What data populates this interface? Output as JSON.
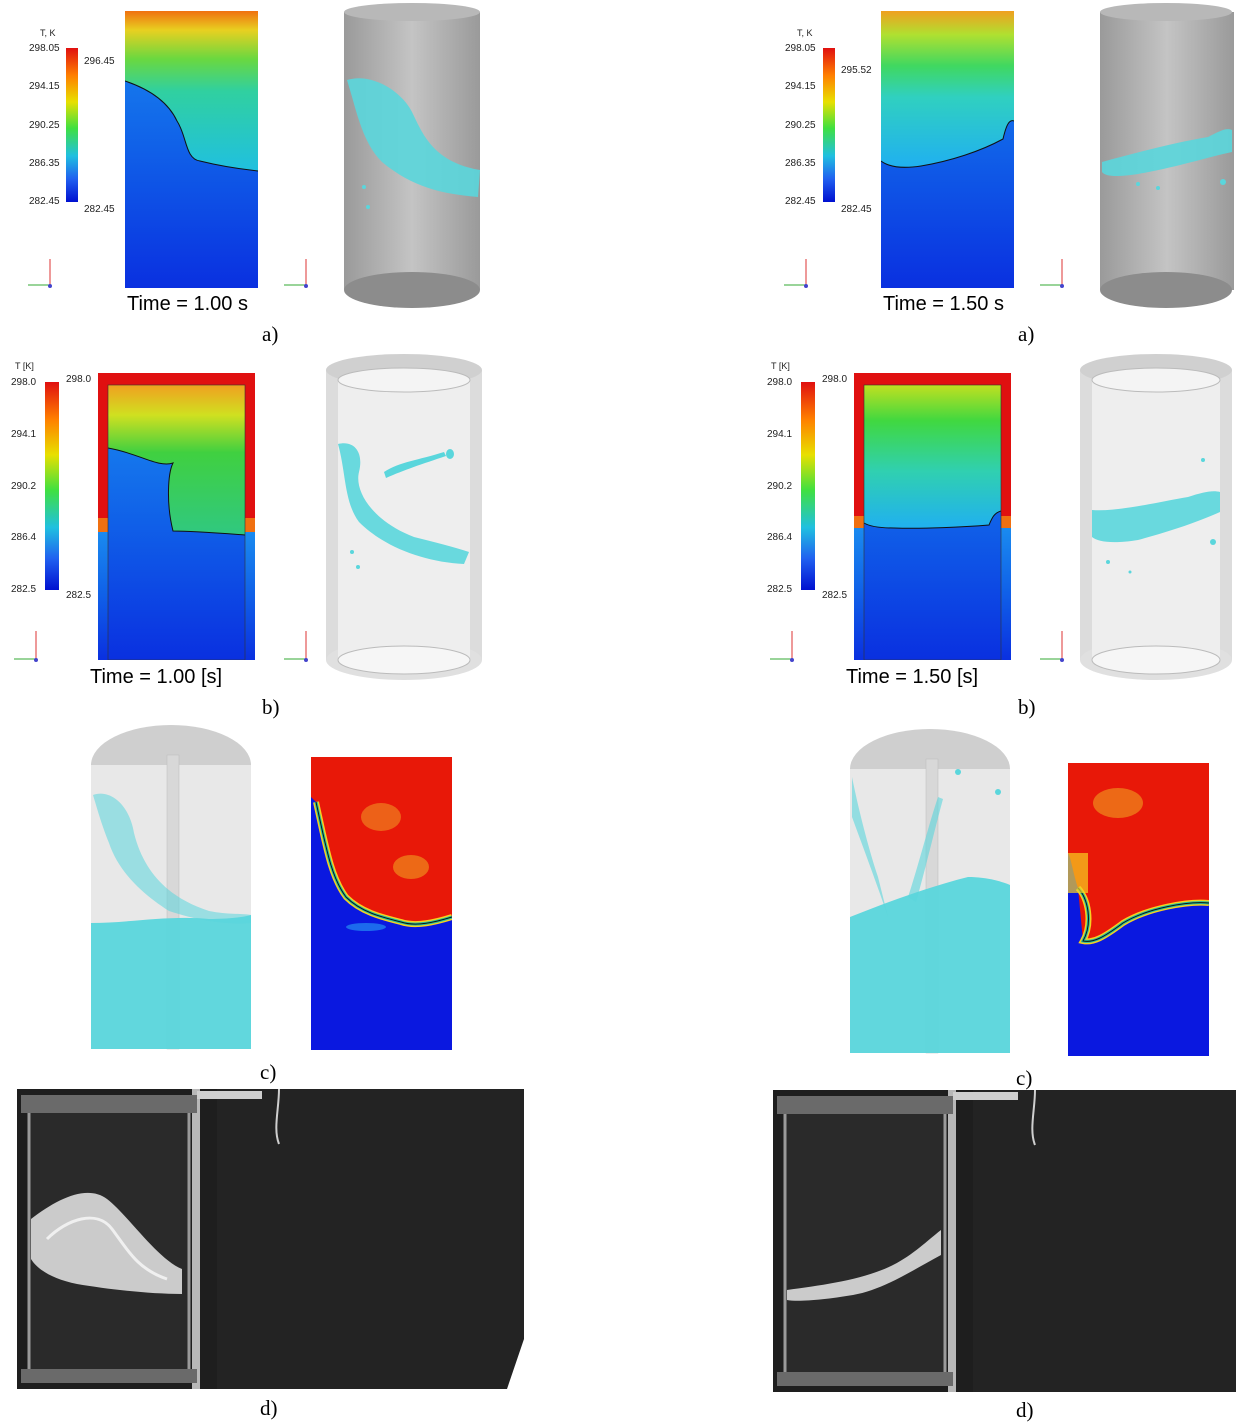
{
  "panel_a_left": {
    "unit": "T, K",
    "ticks": [
      "298.05",
      "294.15",
      "290.25",
      "286.35",
      "282.45"
    ],
    "max_marker": "296.45",
    "min_marker": "282.45",
    "time": "Time = 1.00 s",
    "caption": "a)"
  },
  "panel_a_right": {
    "unit": "T, K",
    "ticks": [
      "298.05",
      "294.15",
      "290.25",
      "286.35",
      "282.45"
    ],
    "max_marker": "295.52",
    "min_marker": "282.45",
    "time": "Time = 1.50 s",
    "caption": "a)"
  },
  "panel_b_left": {
    "unit": "T [K]",
    "ticks": [
      "298.0",
      "294.1",
      "290.2",
      "286.4",
      "282.5"
    ],
    "max_marker": "298.0",
    "min_marker": "282.5",
    "time": "Time = 1.00 [s]",
    "caption": "b)"
  },
  "panel_b_right": {
    "unit": "T [K]",
    "ticks": [
      "298.0",
      "294.1",
      "290.2",
      "286.4",
      "282.5"
    ],
    "max_marker": "298.0",
    "min_marker": "282.5",
    "time": "Time = 1.50 [s]",
    "caption": "b)"
  },
  "panel_c_left": {
    "caption": "c)"
  },
  "panel_c_right": {
    "caption": "c)"
  },
  "panel_d_left": {
    "caption": "d)"
  },
  "panel_d_right": {
    "caption": "d)"
  },
  "colors": {
    "liquid": "#5ad6dc",
    "hot": "#e01010",
    "cold": "#0a2ae0",
    "photo_bg": "#1e1e1e"
  }
}
